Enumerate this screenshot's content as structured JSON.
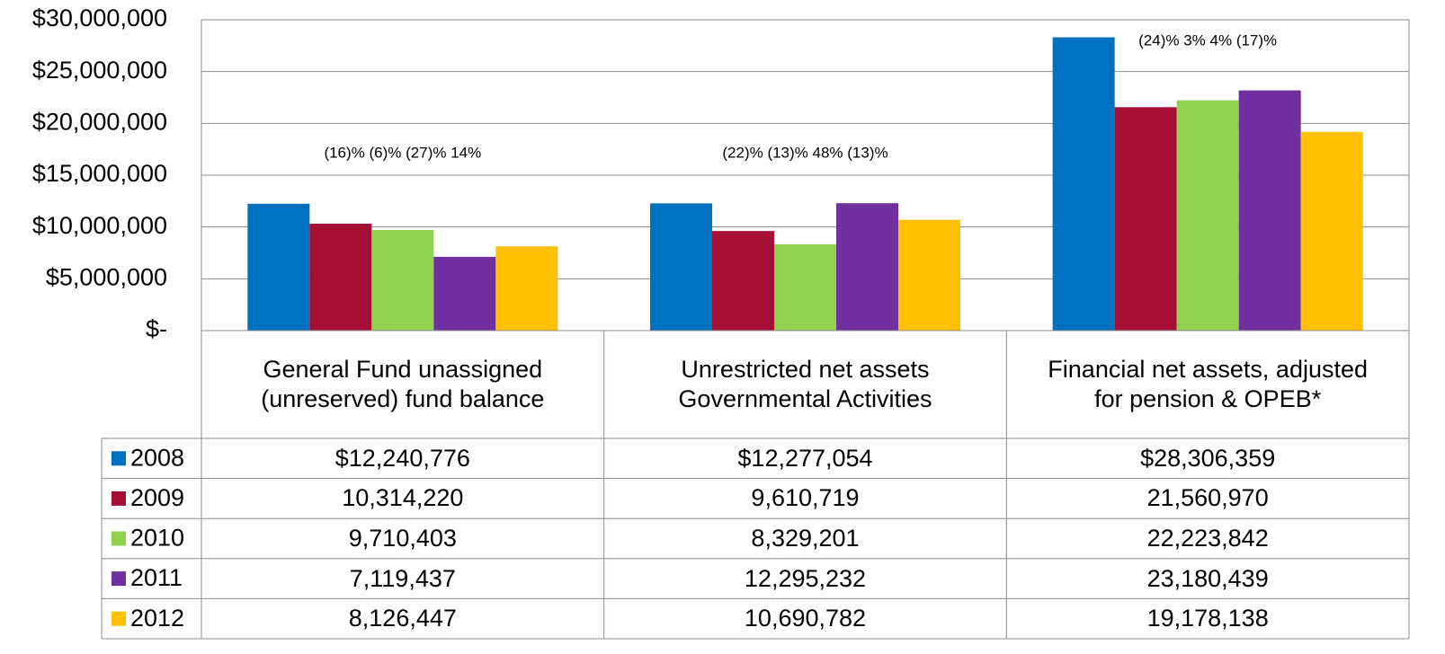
{
  "chart_data": {
    "type": "bar",
    "categories": [
      "General Fund unassigned (unreserved) fund balance",
      "Unrestricted net assets Governmental Activities",
      "Financial net assets, adjusted for pension & OPEB*"
    ],
    "series": [
      {
        "name": "2008",
        "color": "#0070c0",
        "values": [
          12240776,
          12277054,
          28306359
        ],
        "value_labels": [
          "$12,240,776",
          "$12,277,054",
          "$28,306,359"
        ]
      },
      {
        "name": "2009",
        "color": "#a50f33",
        "values": [
          10314220,
          9610719,
          21560970
        ],
        "value_labels": [
          "10,314,220",
          "9,610,719",
          "21,560,970"
        ]
      },
      {
        "name": "2010",
        "color": "#92d050",
        "values": [
          9710403,
          8329201,
          22223842
        ],
        "value_labels": [
          "9,710,403",
          "8,329,201",
          "22,223,842"
        ]
      },
      {
        "name": "2011",
        "color": "#7030a0",
        "values": [
          7119437,
          12295232,
          23180439
        ],
        "value_labels": [
          "7,119,437",
          "12,295,232",
          "23,180,439"
        ]
      },
      {
        "name": "2012",
        "color": "#ffc000",
        "values": [
          8126447,
          10690782,
          19178138
        ],
        "value_labels": [
          "8,126,447",
          "10,690,782",
          "19,178,138"
        ]
      }
    ],
    "annotations": [
      "(16)% (6)% (27)% 14%",
      "(22)% (13)% 48% (13)%",
      "(24)% 3% 4% (17)%"
    ],
    "ylim": [
      0,
      30000000
    ],
    "yticks": [
      {
        "value": 0,
        "label": "$-"
      },
      {
        "value": 5000000,
        "label": "$5,000,000"
      },
      {
        "value": 10000000,
        "label": "$10,000,000"
      },
      {
        "value": 15000000,
        "label": "$15,000,000"
      },
      {
        "value": 20000000,
        "label": "$20,000,000"
      },
      {
        "value": 25000000,
        "label": "$25,000,000"
      },
      {
        "value": 30000000,
        "label": "$30,000,000"
      }
    ],
    "grid": true
  }
}
